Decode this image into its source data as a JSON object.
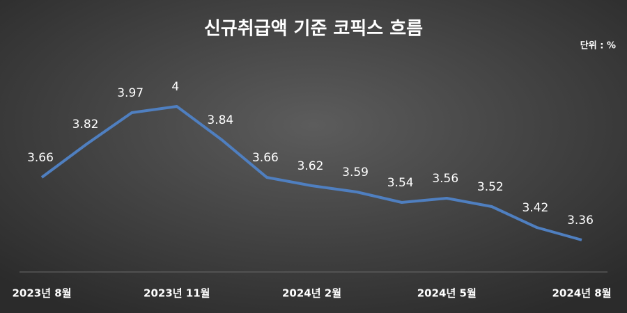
{
  "chart_data": {
    "type": "line",
    "title": "신규취급액 기준 코픽스 흐름",
    "unit_note": "단위 : %",
    "categories": [
      "2023년 8월",
      null,
      null,
      "2023년 11월",
      null,
      null,
      "2024년 2월",
      null,
      null,
      "2024년 5월",
      null,
      null,
      "2024년 8월"
    ],
    "values": [
      3.66,
      3.82,
      3.97,
      4,
      3.84,
      3.66,
      3.62,
      3.59,
      3.54,
      3.56,
      3.52,
      3.42,
      3.36
    ],
    "color": "#4f7fc0"
  }
}
